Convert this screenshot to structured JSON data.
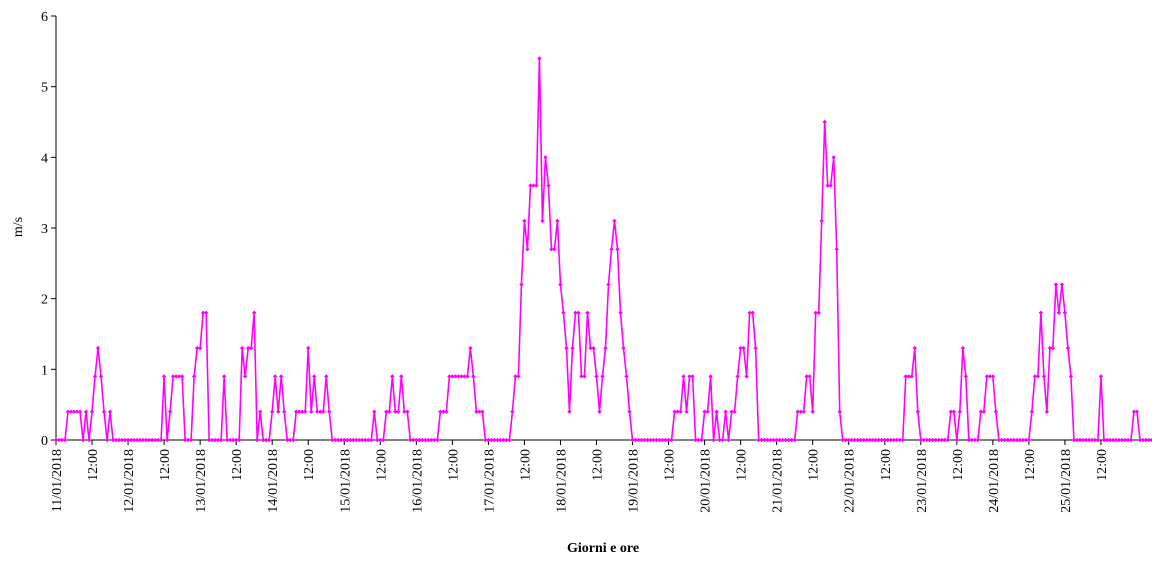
{
  "chart_data": {
    "type": "line",
    "title": "",
    "xlabel": "Giorni e ore",
    "ylabel": "m/s",
    "ylim": [
      0,
      6
    ],
    "yticks": [
      "0",
      "1",
      "2",
      "3",
      "4",
      "5",
      "6"
    ],
    "grid": false,
    "legend": "none",
    "x_ticks": [
      "11/01/2018",
      "12:00",
      "12/01/2018",
      "12:00",
      "13/01/2018",
      "12:00",
      "14/01/2018",
      "12:00",
      "15/01/2018",
      "12:00",
      "16/01/2018",
      "12:00",
      "17/01/2018",
      "12:00",
      "18/01/2018",
      "12:00",
      "19/01/2018",
      "12:00",
      "20/01/2018",
      "12:00",
      "21/01/2018",
      "12:00",
      "22/01/2018",
      "12:00",
      "23/01/2018",
      "12:00",
      "24/01/2018",
      "12:00",
      "25/01/2018",
      "12:00"
    ],
    "x_start": "11/01/2018 00:00",
    "x_step": "1 h",
    "series": [
      {
        "color": "#ff00ff",
        "values": [
          0,
          0,
          0,
          0,
          0.4,
          0.4,
          0.4,
          0.4,
          0.4,
          0,
          0.4,
          0,
          0.4,
          0.9,
          1.3,
          0.9,
          0.4,
          0,
          0.4,
          0,
          0,
          0,
          0,
          0,
          0,
          0,
          0,
          0,
          0,
          0,
          0,
          0,
          0,
          0,
          0,
          0,
          0.9,
          0,
          0.4,
          0.9,
          0.9,
          0.9,
          0.9,
          0,
          0,
          0,
          0.9,
          1.3,
          1.3,
          1.8,
          1.8,
          0,
          0,
          0,
          0,
          0,
          0.9,
          0,
          0,
          0,
          0,
          0,
          1.3,
          0.9,
          1.3,
          1.3,
          1.8,
          0,
          0.4,
          0,
          0,
          0,
          0.4,
          0.9,
          0.4,
          0.9,
          0.4,
          0,
          0,
          0,
          0.4,
          0.4,
          0.4,
          0.4,
          1.3,
          0.4,
          0.9,
          0.4,
          0.4,
          0.4,
          0.9,
          0.4,
          0,
          0,
          0,
          0,
          0,
          0,
          0,
          0,
          0,
          0,
          0,
          0,
          0,
          0,
          0.4,
          0,
          0,
          0,
          0.4,
          0.4,
          0.9,
          0.4,
          0.4,
          0.9,
          0.4,
          0.4,
          0,
          0,
          0,
          0,
          0,
          0,
          0,
          0,
          0,
          0,
          0.4,
          0.4,
          0.4,
          0.9,
          0.9,
          0.9,
          0.9,
          0.9,
          0.9,
          0.9,
          1.3,
          0.9,
          0.4,
          0.4,
          0.4,
          0,
          0,
          0,
          0,
          0,
          0,
          0,
          0,
          0,
          0.4,
          0.9,
          0.9,
          2.2,
          3.1,
          2.7,
          3.6,
          3.6,
          3.6,
          5.4,
          3.1,
          4,
          3.6,
          2.7,
          2.7,
          3.1,
          2.2,
          1.8,
          1.3,
          0.4,
          1.3,
          1.8,
          1.8,
          0.9,
          0.9,
          1.8,
          1.3,
          1.3,
          0.9,
          0.4,
          0.9,
          1.3,
          2.2,
          2.7,
          3.1,
          2.7,
          1.8,
          1.3,
          0.9,
          0.4,
          0,
          0,
          0,
          0,
          0,
          0,
          0,
          0,
          0,
          0,
          0,
          0,
          0,
          0,
          0.4,
          0.4,
          0.4,
          0.9,
          0.4,
          0.9,
          0.9,
          0,
          0,
          0,
          0.4,
          0.4,
          0.9,
          0,
          0.4,
          0,
          0,
          0.4,
          0,
          0.4,
          0.4,
          0.9,
          1.3,
          1.3,
          0.9,
          1.8,
          1.8,
          1.3,
          0,
          0,
          0,
          0,
          0,
          0,
          0,
          0,
          0,
          0,
          0,
          0,
          0,
          0.4,
          0.4,
          0.4,
          0.9,
          0.9,
          0.4,
          1.8,
          1.8,
          3.1,
          4.5,
          3.6,
          3.6,
          4,
          2.7,
          0.4,
          0,
          0,
          0,
          0,
          0,
          0,
          0,
          0,
          0,
          0,
          0,
          0,
          0,
          0,
          0,
          0,
          0,
          0,
          0,
          0,
          0,
          0.9,
          0.9,
          0.9,
          1.3,
          0.4,
          0,
          0,
          0,
          0,
          0,
          0,
          0,
          0,
          0,
          0,
          0.4,
          0.4,
          0,
          0.4,
          1.3,
          0.9,
          0,
          0,
          0,
          0,
          0.4,
          0.4,
          0.9,
          0.9,
          0.9,
          0.4,
          0,
          0,
          0,
          0,
          0,
          0,
          0,
          0,
          0,
          0,
          0,
          0.4,
          0.9,
          0.9,
          1.8,
          0.9,
          0.4,
          1.3,
          1.3,
          2.2,
          1.8,
          2.2,
          1.8,
          1.3,
          0.9,
          0,
          0,
          0,
          0,
          0,
          0,
          0,
          0,
          0,
          0.9,
          0,
          0,
          0,
          0,
          0,
          0,
          0,
          0,
          0,
          0,
          0.4,
          0.4,
          0,
          0,
          0,
          0,
          0
        ]
      }
    ]
  }
}
